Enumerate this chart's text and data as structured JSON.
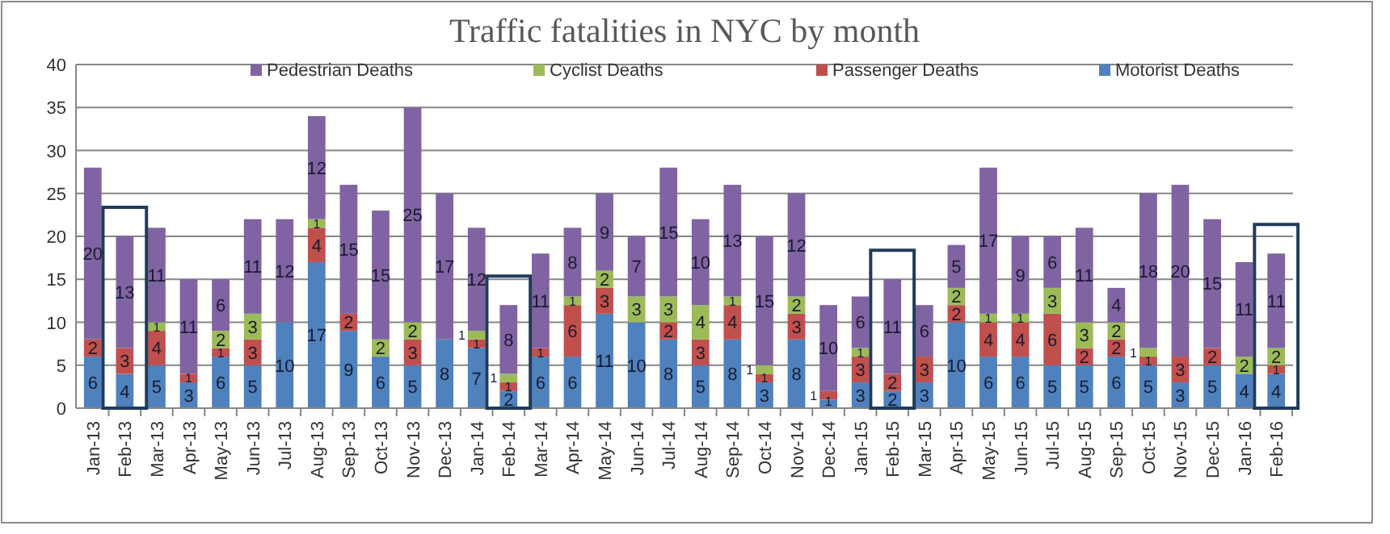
{
  "chart_data": {
    "type": "bar",
    "title": "Traffic fatalities in NYC by month",
    "stacked": true,
    "grid": "y",
    "legend": "top",
    "categories": [
      "Jan-13",
      "Feb-13",
      "Mar-13",
      "Apr-13",
      "May-13",
      "Jun-13",
      "Jul-13",
      "Aug-13",
      "Sep-13",
      "Oct-13",
      "Nov-13",
      "Dec-13",
      "Jan-14",
      "Feb-14",
      "Mar-14",
      "Apr-14",
      "May-14",
      "Jun-14",
      "Jul-14",
      "Aug-14",
      "Sep-14",
      "Oct-14",
      "Nov-14",
      "Dec-14",
      "Jan-15",
      "Feb-15",
      "Mar-15",
      "Apr-15",
      "May-15",
      "Jun-15",
      "Jul-15",
      "Aug-15",
      "Sep-15",
      "Oct-15",
      "Nov-15",
      "Dec-15",
      "Jan-16",
      "Feb-16"
    ],
    "series": [
      {
        "name": "Motorist Deaths",
        "color": "#4f81bd",
        "values": [
          6,
          4,
          5,
          3,
          6,
          5,
          10,
          17,
          9,
          6,
          5,
          8,
          7,
          2,
          6,
          6,
          11,
          10,
          8,
          5,
          8,
          3,
          8,
          1,
          3,
          2,
          3,
          10,
          6,
          6,
          5,
          5,
          6,
          5,
          3,
          5,
          4,
          4
        ],
        "value_labels": [
          "6",
          "4",
          "5",
          "3",
          "6",
          "5",
          "10",
          "17",
          "9",
          "6",
          "5",
          "8",
          "7",
          "2",
          "6",
          "6",
          "11",
          "10",
          "8",
          "5",
          "8",
          "3",
          "8",
          "1",
          "3",
          "2",
          "3",
          "10",
          "6",
          "6",
          "5",
          "5",
          "6",
          "5",
          "3",
          "5",
          "4",
          "4"
        ]
      },
      {
        "name": "Passenger Deaths",
        "color": "#c0504d",
        "values": [
          2,
          3,
          4,
          1,
          1,
          3,
          0,
          4,
          2,
          0,
          3,
          0,
          1,
          1,
          1,
          6,
          3,
          0,
          2,
          3,
          4,
          1,
          3,
          1,
          3,
          2,
          3,
          2,
          4,
          4,
          6,
          2,
          2,
          1,
          3,
          2,
          0,
          1
        ],
        "value_labels": [
          "2",
          "3",
          "4",
          "1",
          "1",
          "3",
          null,
          "4",
          "2",
          null,
          "3",
          null,
          "1",
          "1",
          "1",
          "6",
          "3",
          null,
          "2",
          "3",
          "4",
          "1",
          "3",
          "1",
          "3",
          "2",
          "3",
          "2",
          "4",
          "4",
          "6",
          "2",
          "2",
          "1",
          "3",
          "2",
          null,
          "1"
        ]
      },
      {
        "name": "Cyclist Deaths",
        "color": "#9bbb59",
        "values": [
          0,
          0,
          1,
          0,
          2,
          3,
          0,
          1,
          0,
          2,
          2,
          0,
          1,
          1,
          0,
          1,
          2,
          3,
          3,
          4,
          1,
          1,
          2,
          0,
          1,
          0,
          0,
          2,
          1,
          1,
          3,
          3,
          2,
          1,
          0,
          0,
          2,
          2
        ],
        "value_labels": [
          null,
          null,
          "1",
          null,
          "2",
          "3",
          null,
          "1",
          null,
          "2",
          "2",
          null,
          "1",
          "1",
          null,
          "1",
          "2",
          "3",
          "3",
          "4",
          "1",
          "1",
          "2",
          null,
          "1",
          null,
          null,
          "2",
          "1",
          "1",
          "3",
          "3",
          "2",
          "1",
          null,
          null,
          "2",
          "2"
        ]
      },
      {
        "name": "Pedestrian Deaths",
        "color": "#8064a2",
        "values": [
          20,
          13,
          11,
          11,
          6,
          11,
          12,
          12,
          15,
          15,
          25,
          17,
          12,
          8,
          11,
          8,
          9,
          7,
          15,
          10,
          13,
          15,
          12,
          10,
          6,
          11,
          6,
          5,
          17,
          9,
          6,
          11,
          4,
          18,
          20,
          15,
          11,
          11
        ],
        "value_labels": [
          "20",
          "13",
          "11",
          "11",
          "6",
          "11",
          "12",
          "12",
          "15",
          "15",
          "25",
          "17",
          "12",
          "8",
          "11",
          "8",
          "9",
          "7",
          "15",
          "10",
          "13",
          "15",
          "12",
          "10",
          "6",
          "11",
          "6",
          "5",
          "17",
          "9",
          "6",
          "11",
          "4",
          "18",
          "20",
          "15",
          "11",
          "11"
        ]
      }
    ],
    "ylim": [
      0,
      40
    ],
    "yticks": [
      0,
      5,
      10,
      15,
      20,
      25,
      30,
      35,
      40
    ]
  }
}
